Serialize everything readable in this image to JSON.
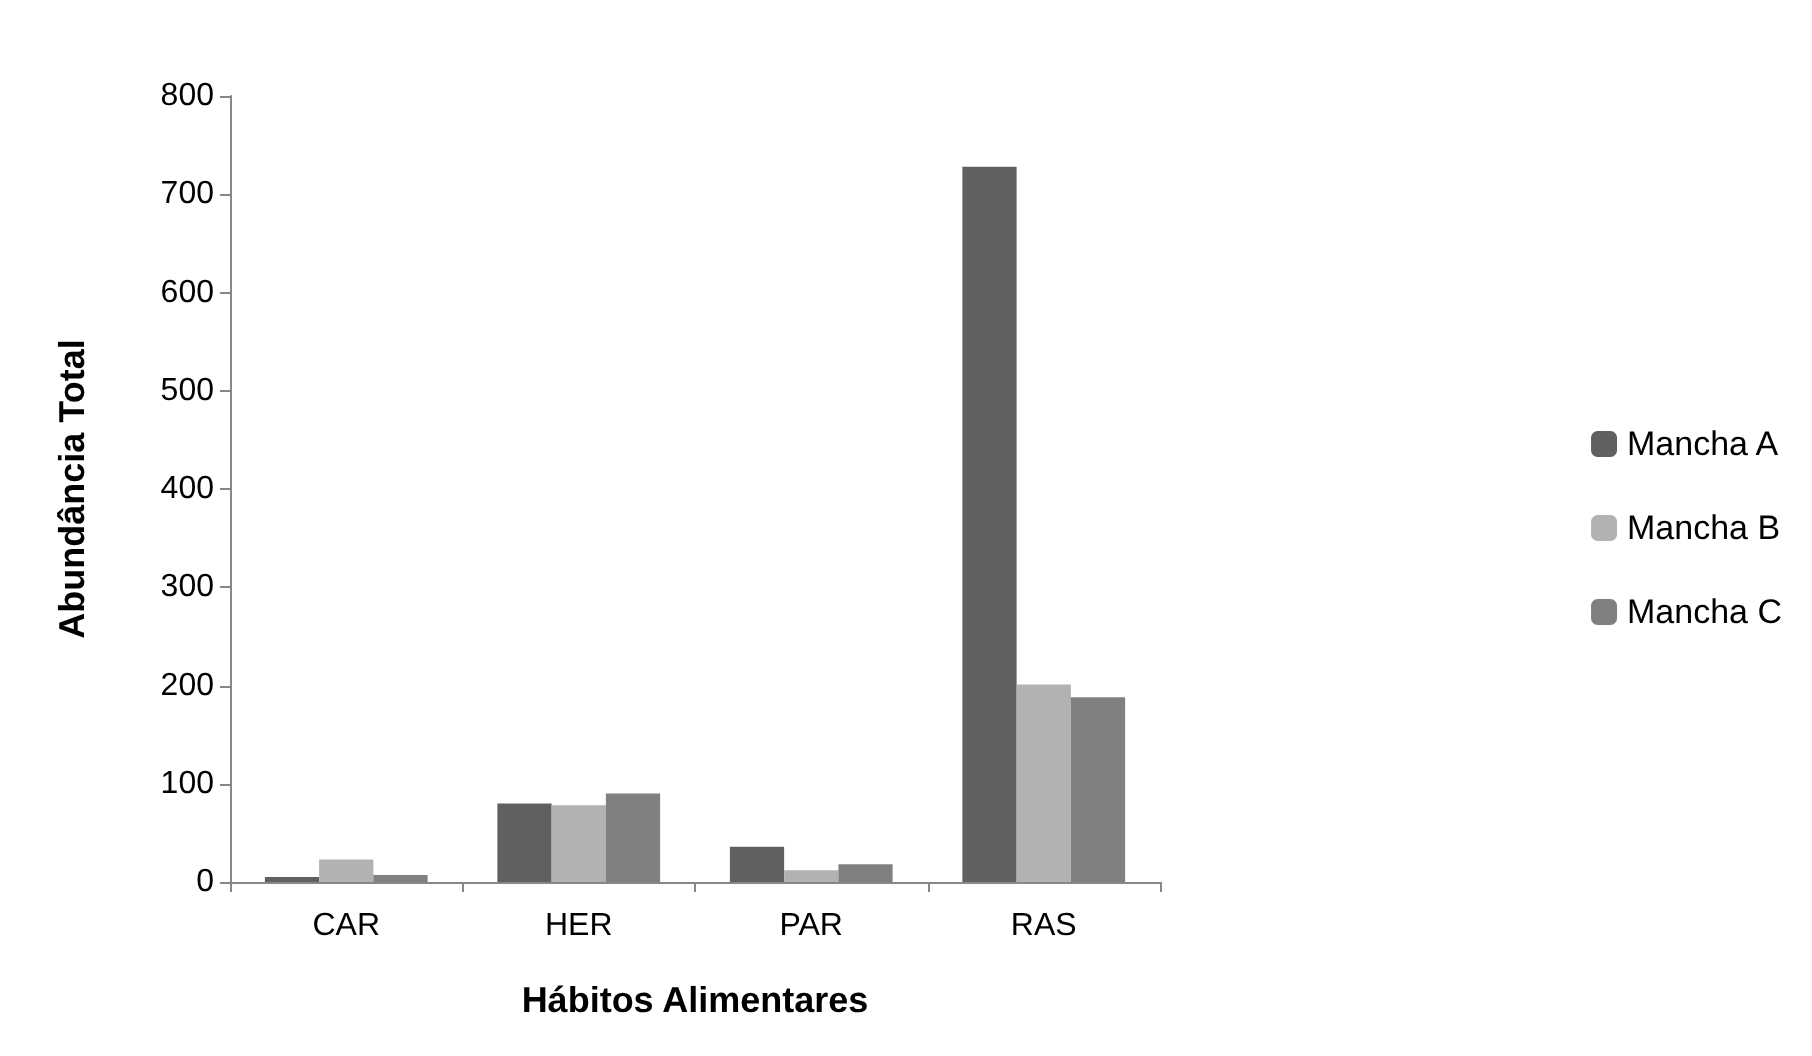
{
  "chart_data": {
    "type": "bar",
    "xlabel": "Hábitos Alimentares",
    "ylabel": "Abundância Total",
    "categories": [
      "CAR",
      "HER",
      "PAR",
      "RAS"
    ],
    "series": [
      {
        "name": "Mancha A",
        "color": "#606060",
        "values": [
          5,
          80,
          36,
          728
        ]
      },
      {
        "name": "Mancha B",
        "color": "#b2b2b2",
        "values": [
          23,
          78,
          12,
          201
        ]
      },
      {
        "name": "Mancha C",
        "color": "#808080",
        "values": [
          7,
          90,
          18,
          188
        ]
      }
    ],
    "ylim": [
      0,
      800
    ],
    "yticks": [
      0,
      100,
      200,
      300,
      400,
      500,
      600,
      700,
      800
    ],
    "grid": false,
    "legend": "right"
  }
}
